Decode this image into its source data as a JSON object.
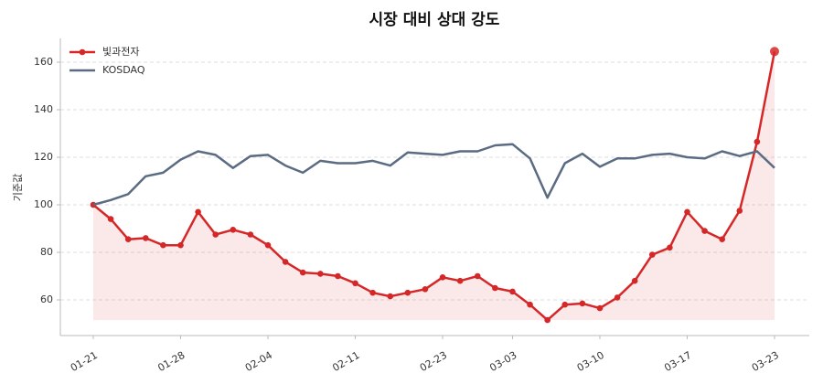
{
  "chart_data": {
    "type": "line",
    "title": "시장 대비 상대 강도",
    "y_label": "기준값",
    "categories": [
      "01-21",
      null,
      null,
      null,
      null,
      "01-28",
      null,
      null,
      null,
      null,
      "02-04",
      null,
      null,
      null,
      null,
      "02-11",
      null,
      null,
      null,
      null,
      "02-23",
      null,
      null,
      null,
      "03-03",
      null,
      null,
      null,
      null,
      "03-10",
      null,
      null,
      null,
      null,
      "03-17",
      null,
      null,
      null,
      null,
      "03-23"
    ],
    "series": [
      {
        "name": "빛과전자",
        "color": "#d62728",
        "area": true,
        "markers": true,
        "values": [
          100,
          94,
          85.5,
          86,
          83,
          83,
          97,
          87.5,
          89.5,
          87.5,
          83,
          76,
          71.5,
          71,
          70,
          67,
          63,
          61.5,
          63,
          64.5,
          69.5,
          68,
          70,
          65,
          63.5,
          58,
          51.5,
          58,
          58.5,
          56.5,
          61,
          68,
          79,
          82,
          97,
          89,
          85.5,
          97.5,
          126.5,
          164.5
        ]
      },
      {
        "name": "KOSDAQ",
        "color": "#5a6b82",
        "area": false,
        "markers": false,
        "values": [
          100,
          102,
          104.5,
          112,
          113.5,
          119,
          122.5,
          121,
          115.5,
          120.5,
          121,
          116.5,
          113.5,
          118.5,
          117.5,
          117.5,
          118.5,
          116.5,
          122,
          121.5,
          121,
          122.5,
          122.5,
          125,
          125.5,
          119.5,
          103,
          117.5,
          121.5,
          116,
          119.5,
          119.5,
          121,
          121.5,
          120,
          119.5,
          122.5,
          120.5,
          122.5,
          115.5
        ]
      }
    ],
    "ylim": [
      45,
      170
    ],
    "yticks": [
      60,
      80,
      100,
      120,
      140,
      160
    ],
    "grid": true,
    "legend": "upper left"
  }
}
